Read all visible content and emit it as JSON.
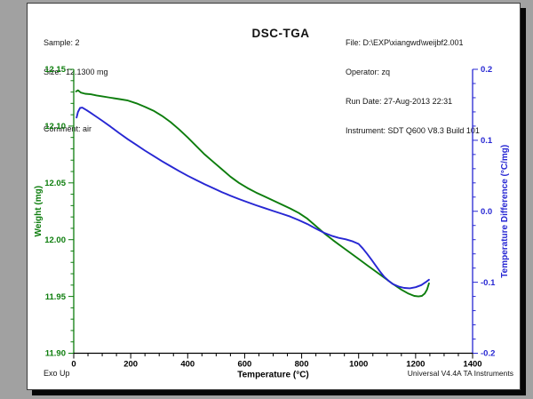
{
  "page": {
    "background": "#a1a1a1",
    "sample_info": {
      "sample": "Sample: 2",
      "size": "Size:  12.1300 mg",
      "comment": "Comment: air"
    },
    "title": "DSC-TGA",
    "file_info": {
      "file": "File: D:\\EXP\\xiangwd\\weijbf2.001",
      "operator": "Operator: zq",
      "run_date": "Run Date: 27-Aug-2013 22:31",
      "instrument": "Instrument: SDT Q600 V8.3 Build 101"
    },
    "footer": {
      "exo_label": "Exo Up",
      "brand": "Universal V4.4A TA Instruments"
    }
  },
  "chart_data": {
    "type": "line",
    "title": "DSC-TGA",
    "grid": false,
    "legend": "none",
    "x_axis": {
      "label": "Temperature (°C)",
      "min": 0,
      "max": 1400,
      "major_step": 200,
      "minor_step": 50,
      "decimals": 0,
      "color": "#000000"
    },
    "y_left": {
      "label": "Weight (mg)",
      "min": 11.9,
      "max": 12.15,
      "major_step": 0.05,
      "minor_step": 0.01,
      "decimals": 2,
      "color": "#0d7d0d"
    },
    "y_right": {
      "label": "Temperature Difference (°C/mg)",
      "min": -0.2,
      "max": 0.2,
      "major_step": 0.1,
      "minor_step": 0.02,
      "decimals": 1,
      "color": "#2727d3"
    },
    "series": [
      {
        "name": "Weight",
        "axis": "left",
        "color": "#0d7d0d",
        "units": "mg",
        "points": [
          [
            8,
            12.1305
          ],
          [
            15,
            12.1315
          ],
          [
            25,
            12.1295
          ],
          [
            40,
            12.1285
          ],
          [
            60,
            12.128
          ],
          [
            80,
            12.127
          ],
          [
            100,
            12.1262
          ],
          [
            130,
            12.125
          ],
          [
            160,
            12.1238
          ],
          [
            190,
            12.1225
          ],
          [
            220,
            12.12
          ],
          [
            250,
            12.117
          ],
          [
            280,
            12.1135
          ],
          [
            310,
            12.109
          ],
          [
            340,
            12.1035
          ],
          [
            370,
            12.097
          ],
          [
            400,
            12.09
          ],
          [
            430,
            12.0825
          ],
          [
            460,
            12.075
          ],
          [
            490,
            12.0685
          ],
          [
            520,
            12.062
          ],
          [
            550,
            12.0555
          ],
          [
            580,
            12.05
          ],
          [
            610,
            12.0455
          ],
          [
            640,
            12.0415
          ],
          [
            670,
            12.038
          ],
          [
            700,
            12.0345
          ],
          [
            730,
            12.031
          ],
          [
            760,
            12.0275
          ],
          [
            790,
            12.0235
          ],
          [
            820,
            12.0185
          ],
          [
            850,
            12.012
          ],
          [
            880,
            12.0055
          ],
          [
            910,
            11.9995
          ],
          [
            940,
            11.994
          ],
          [
            970,
            11.9885
          ],
          [
            1000,
            11.983
          ],
          [
            1030,
            11.9775
          ],
          [
            1060,
            11.972
          ],
          [
            1090,
            11.9665
          ],
          [
            1120,
            11.961
          ],
          [
            1150,
            11.956
          ],
          [
            1175,
            11.9525
          ],
          [
            1195,
            11.9505
          ],
          [
            1210,
            11.95
          ],
          [
            1222,
            11.9505
          ],
          [
            1232,
            11.9525
          ],
          [
            1240,
            11.956
          ],
          [
            1247,
            11.9615
          ]
        ]
      },
      {
        "name": "Temperature Difference",
        "axis": "right",
        "color": "#2727d3",
        "units": "°C/mg",
        "points": [
          [
            10,
            0.132
          ],
          [
            15,
            0.14
          ],
          [
            22,
            0.1455
          ],
          [
            30,
            0.146
          ],
          [
            45,
            0.1425
          ],
          [
            60,
            0.1385
          ],
          [
            80,
            0.133
          ],
          [
            100,
            0.1275
          ],
          [
            130,
            0.119
          ],
          [
            160,
            0.11
          ],
          [
            190,
            0.1015
          ],
          [
            220,
            0.0935
          ],
          [
            250,
            0.0855
          ],
          [
            280,
            0.078
          ],
          [
            310,
            0.0705
          ],
          [
            340,
            0.0635
          ],
          [
            370,
            0.0565
          ],
          [
            400,
            0.05
          ],
          [
            430,
            0.044
          ],
          [
            460,
            0.038
          ],
          [
            490,
            0.0325
          ],
          [
            520,
            0.027
          ],
          [
            550,
            0.022
          ],
          [
            580,
            0.0172
          ],
          [
            610,
            0.0128
          ],
          [
            640,
            0.0085
          ],
          [
            670,
            0.0045
          ],
          [
            700,
            0.0005
          ],
          [
            730,
            -0.0035
          ],
          [
            760,
            -0.0075
          ],
          [
            790,
            -0.0125
          ],
          [
            820,
            -0.018
          ],
          [
            850,
            -0.0245
          ],
          [
            880,
            -0.0305
          ],
          [
            905,
            -0.0345
          ],
          [
            930,
            -0.0375
          ],
          [
            955,
            -0.0395
          ],
          [
            980,
            -0.0425
          ],
          [
            1000,
            -0.046
          ],
          [
            1015,
            -0.0525
          ],
          [
            1030,
            -0.06
          ],
          [
            1045,
            -0.068
          ],
          [
            1060,
            -0.0765
          ],
          [
            1075,
            -0.085
          ],
          [
            1090,
            -0.0925
          ],
          [
            1105,
            -0.098
          ],
          [
            1120,
            -0.1025
          ],
          [
            1140,
            -0.106
          ],
          [
            1160,
            -0.108
          ],
          [
            1180,
            -0.1085
          ],
          [
            1200,
            -0.107
          ],
          [
            1220,
            -0.104
          ],
          [
            1235,
            -0.1
          ],
          [
            1247,
            -0.0965
          ]
        ]
      }
    ]
  }
}
